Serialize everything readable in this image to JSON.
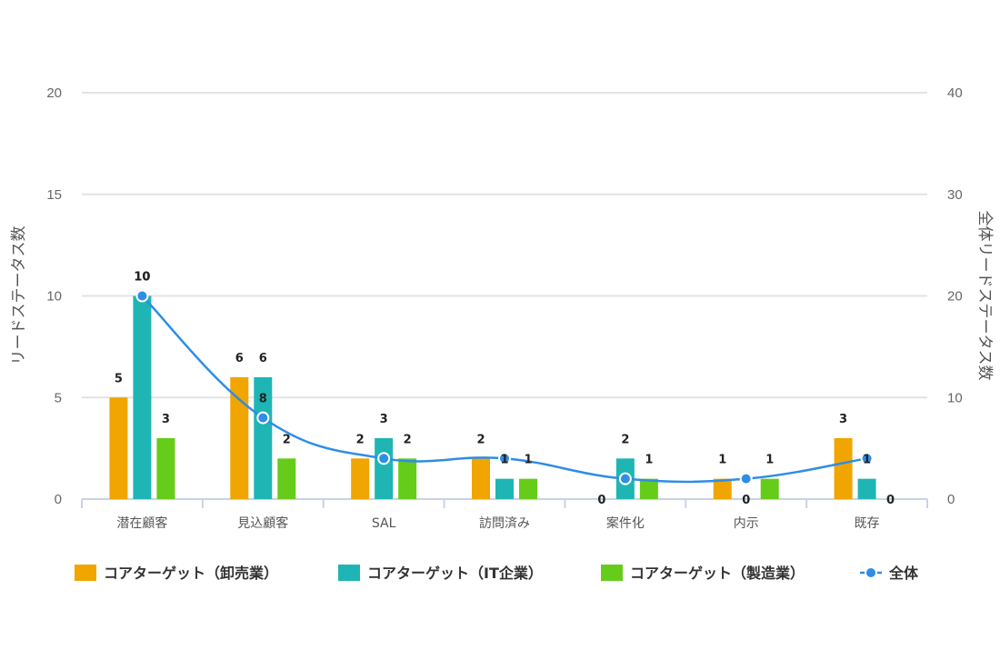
{
  "chart_data": {
    "type": "bar",
    "categories": [
      "潜在顧客",
      "見込顧客",
      "SAL",
      "訪問済み",
      "案件化",
      "内示",
      "既存"
    ],
    "series": [
      {
        "name": "コアターゲット（卸売業）",
        "type": "bar",
        "axis": "left",
        "color": "#f0a500",
        "values": [
          5,
          6,
          2,
          2,
          0,
          1,
          3
        ]
      },
      {
        "name": "コアターゲット（IT企業）",
        "type": "bar",
        "axis": "left",
        "color": "#1fb5b5",
        "values": [
          10,
          6,
          3,
          1,
          2,
          0,
          1
        ]
      },
      {
        "name": "コアターゲット（製造業）",
        "type": "bar",
        "axis": "left",
        "color": "#66cc1a",
        "values": [
          3,
          2,
          2,
          1,
          1,
          1,
          0
        ]
      },
      {
        "name": "全体",
        "type": "line",
        "axis": "right",
        "color": "#2e8de6",
        "values": [
          20,
          8,
          4,
          4,
          2,
          2,
          4
        ]
      }
    ],
    "y_left": {
      "label": "リードステータス数",
      "min": 0,
      "max": 20,
      "ticks": [
        0,
        5,
        10,
        15,
        20
      ]
    },
    "y_right": {
      "label": "全体リードステータス数",
      "min": 0,
      "max": 40,
      "ticks": [
        0,
        10,
        20,
        30,
        40
      ]
    },
    "point_labels": [
      {
        "series": 1,
        "category": 0,
        "text": "10"
      },
      {
        "series": 3,
        "category": 1,
        "text": "8"
      },
      {
        "series": 0,
        "category": 4,
        "text": "0"
      },
      {
        "series": 1,
        "category": 5,
        "text": "0"
      },
      {
        "series": 2,
        "category": 6,
        "text": "0"
      }
    ],
    "grid": true,
    "legend_position": "bottom"
  }
}
